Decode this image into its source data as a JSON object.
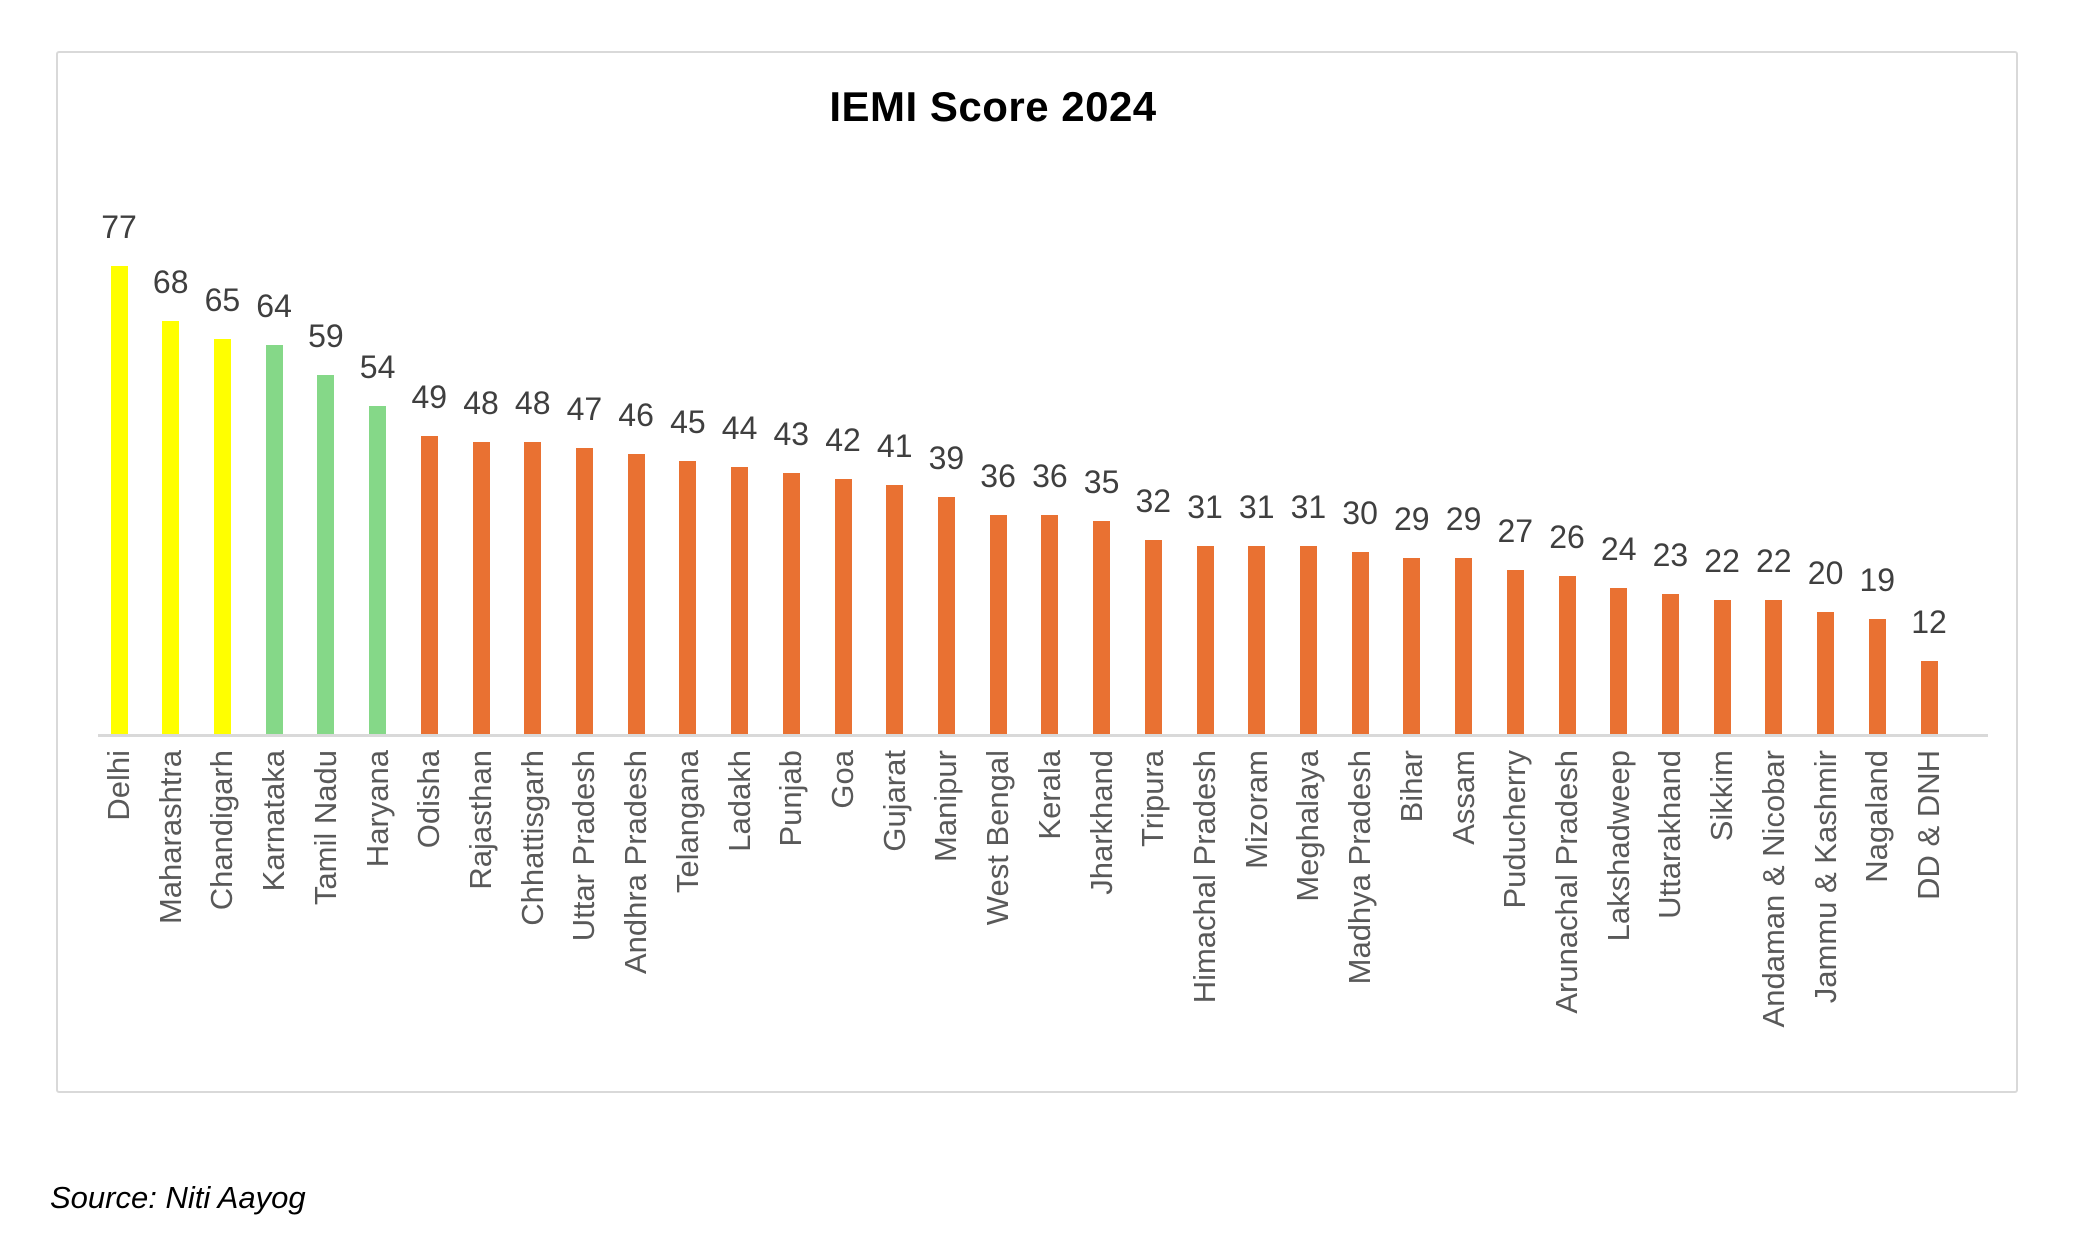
{
  "source_note": "Source: Niti Aayog",
  "colors": {
    "top_group_yellow": "#FFFF00",
    "second_group_green": "#85D888",
    "rest_group_orange": "#E97132",
    "value_label": "#3F3F3F",
    "axis_label": "#595959",
    "axis_line": "#D9D9D9",
    "panel_border": "#D9D9D9",
    "title": "#000000",
    "background": "#FFFFFF"
  },
  "chart_data": {
    "type": "bar",
    "title": "IEMI Score 2024",
    "xlabel": "",
    "ylabel": "",
    "legend": "none",
    "gridlines": false,
    "y_axis_visible": false,
    "x_label_rotation_degrees": -90,
    "value_labels_position": "outside-end",
    "categories": [
      "Delhi",
      "Maharashtra",
      "Chandigarh",
      "Karnataka",
      "Tamil Nadu",
      "Haryana",
      "Odisha",
      "Rajasthan",
      "Chhattisgarh",
      "Uttar Pradesh",
      "Andhra Pradesh",
      "Telangana",
      "Ladakh",
      "Punjab",
      "Goa",
      "Gujarat",
      "Manipur",
      "West Bengal",
      "Kerala",
      "Jharkhand",
      "Tripura",
      "Himachal Pradesh",
      "Mizoram",
      "Meghalaya",
      "Madhya Pradesh",
      "Bihar",
      "Assam",
      "Puducherry",
      "Arunachal Pradesh",
      "Lakshadweep",
      "Uttarakhand",
      "Sikkim",
      "Andaman & Nicobar",
      "Jammu & Kashmir",
      "Nagaland",
      "DD & DNH"
    ],
    "values": [
      77,
      68,
      65,
      64,
      59,
      54,
      49,
      48,
      48,
      47,
      46,
      45,
      44,
      43,
      42,
      41,
      39,
      36,
      36,
      35,
      32,
      31,
      31,
      31,
      30,
      29,
      29,
      27,
      26,
      24,
      23,
      22,
      22,
      20,
      19,
      12
    ],
    "bar_colors": [
      "#FFFF00",
      "#FFFF00",
      "#FFFF00",
      "#85D888",
      "#85D888",
      "#85D888",
      "#E97132",
      "#E97132",
      "#E97132",
      "#E97132",
      "#E97132",
      "#E97132",
      "#E97132",
      "#E97132",
      "#E97132",
      "#E97132",
      "#E97132",
      "#E97132",
      "#E97132",
      "#E97132",
      "#E97132",
      "#E97132",
      "#E97132",
      "#E97132",
      "#E97132",
      "#E97132",
      "#E97132",
      "#E97132",
      "#E97132",
      "#E97132",
      "#E97132",
      "#E97132",
      "#E97132",
      "#E97132",
      "#E97132",
      "#E97132"
    ]
  }
}
